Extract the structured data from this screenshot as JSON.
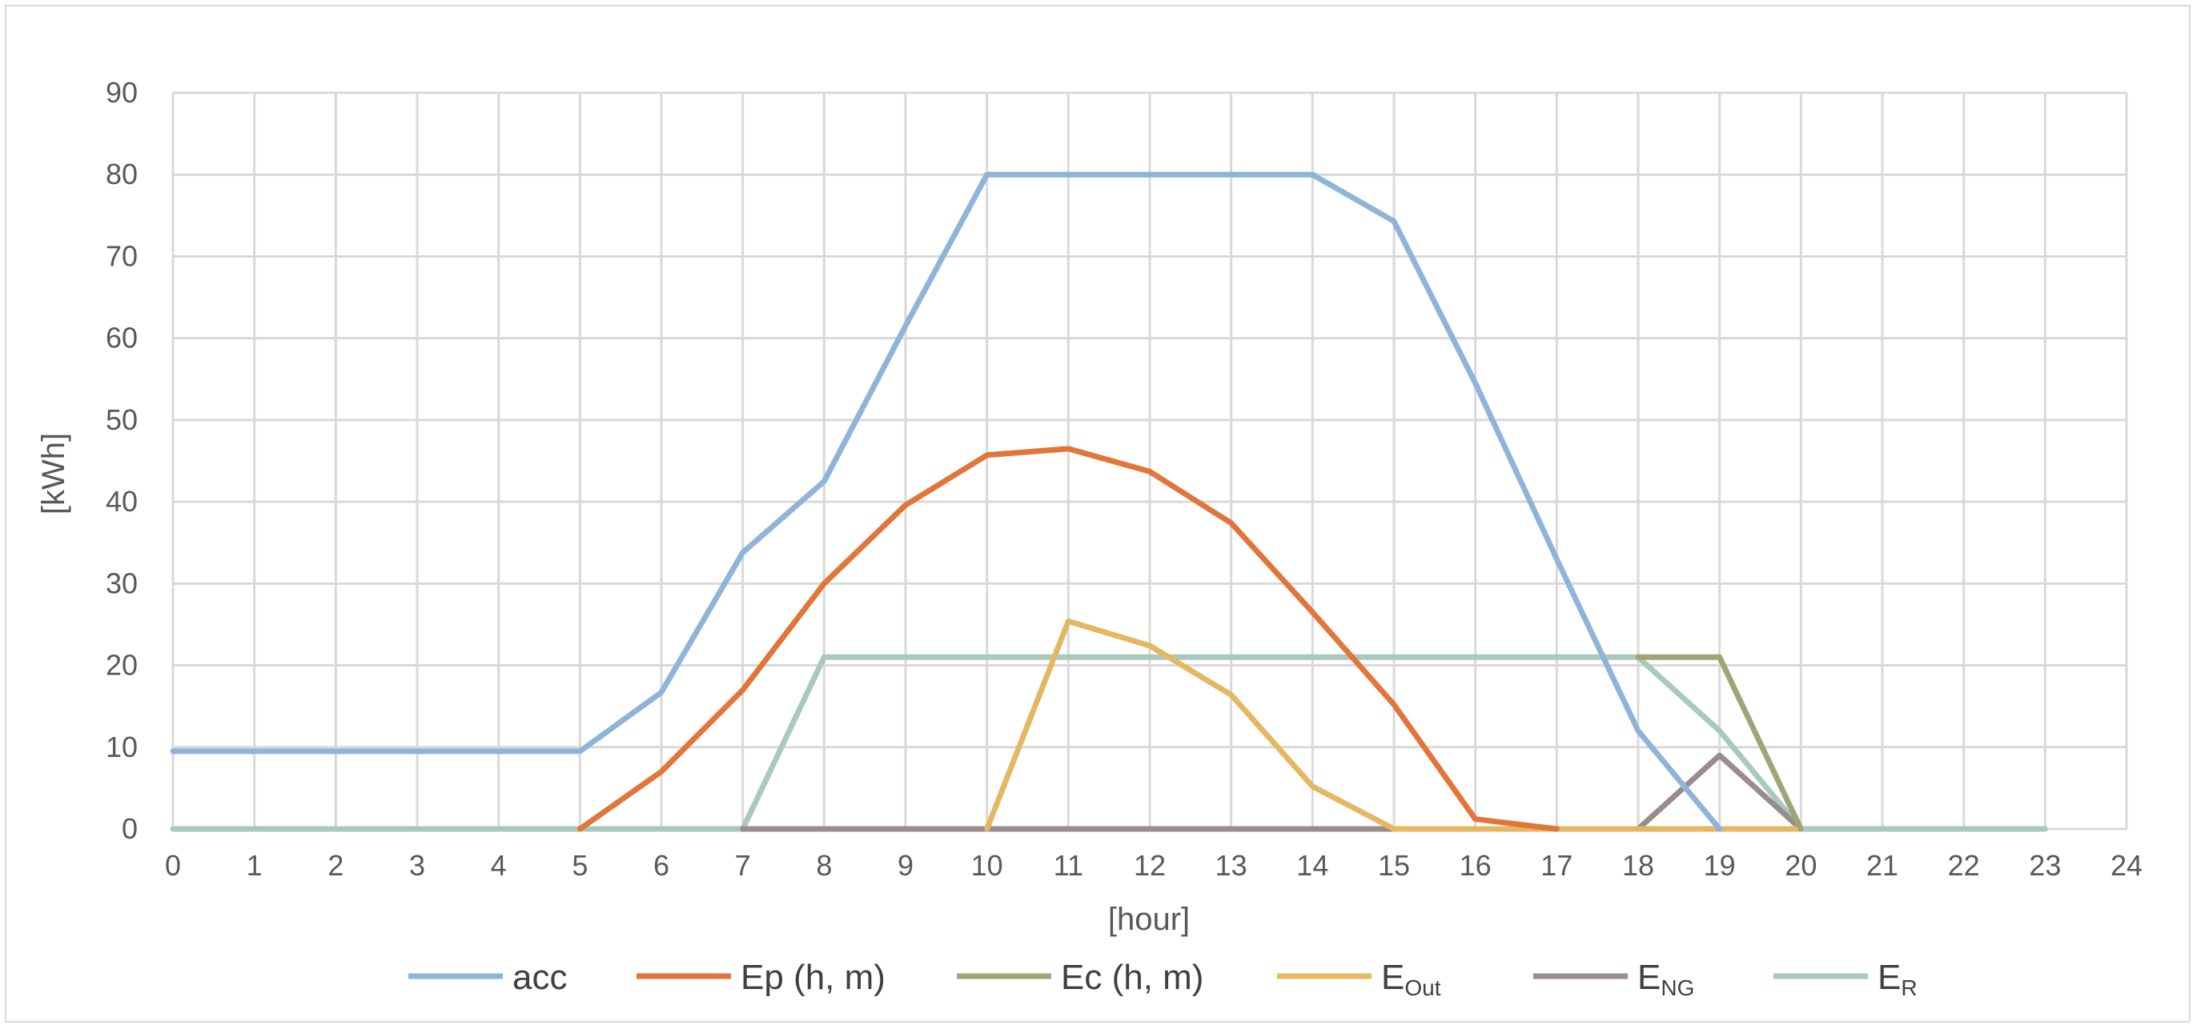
{
  "chart_data": {
    "type": "line",
    "title": "",
    "xlabel": "[hour]",
    "ylabel": "[kWh]",
    "xlim": [
      0,
      24
    ],
    "ylim": [
      0,
      90
    ],
    "x_ticks": [
      "0",
      "1",
      "2",
      "3",
      "4",
      "5",
      "6",
      "7",
      "8",
      "9",
      "10",
      "11",
      "12",
      "13",
      "14",
      "15",
      "16",
      "17",
      "18",
      "19",
      "20",
      "21",
      "22",
      "23",
      "24"
    ],
    "y_ticks": [
      "0",
      "10",
      "20",
      "30",
      "40",
      "50",
      "60",
      "70",
      "80",
      "90"
    ],
    "grid": true,
    "legend_position": "bottom",
    "series": [
      {
        "name": "acc",
        "color": "#8fb4d9",
        "points": [
          [
            0,
            9.5
          ],
          [
            1,
            9.5
          ],
          [
            2,
            9.5
          ],
          [
            3,
            9.5
          ],
          [
            4,
            9.5
          ],
          [
            5,
            9.5
          ],
          [
            6,
            16.7
          ],
          [
            7,
            33.8
          ],
          [
            8,
            42.5
          ],
          [
            9,
            61.5
          ],
          [
            10,
            80
          ],
          [
            11,
            80
          ],
          [
            12,
            80
          ],
          [
            13,
            80
          ],
          [
            14,
            80
          ],
          [
            15,
            74.3
          ],
          [
            16,
            54.5
          ],
          [
            17,
            33
          ],
          [
            18,
            12
          ],
          [
            19,
            0
          ]
        ]
      },
      {
        "name": "Ep (h, m)",
        "color": "#e2753a",
        "points": [
          [
            5,
            0
          ],
          [
            6,
            7
          ],
          [
            7,
            17
          ],
          [
            8,
            30
          ],
          [
            9,
            39.6
          ],
          [
            10,
            45.7
          ],
          [
            11,
            46.5
          ],
          [
            12,
            43.7
          ],
          [
            13,
            37.4
          ],
          [
            14,
            26.5
          ],
          [
            15,
            15.2
          ],
          [
            16,
            1.2
          ],
          [
            17,
            0
          ]
        ]
      },
      {
        "name": "Ec (h, m)",
        "color": "#a0a577",
        "points": [
          [
            18,
            21
          ],
          [
            19,
            21
          ],
          [
            20,
            0
          ]
        ]
      },
      {
        "name": "E",
        "name_sub": "Out",
        "color": "#e4b862",
        "points": [
          [
            10,
            0
          ],
          [
            11,
            25.4
          ],
          [
            12,
            22.4
          ],
          [
            13,
            16.4
          ],
          [
            14,
            5.2
          ],
          [
            15,
            0
          ],
          [
            18,
            0
          ],
          [
            19,
            0
          ],
          [
            20,
            0
          ]
        ]
      },
      {
        "name": "E",
        "name_sub": "NG",
        "color": "#9a8c8c",
        "points": [
          [
            7,
            0
          ],
          [
            8,
            0
          ],
          [
            9,
            0
          ],
          [
            10,
            0
          ],
          [
            11,
            0
          ],
          [
            12,
            0
          ],
          [
            13,
            0
          ],
          [
            14,
            0
          ],
          [
            15,
            0
          ],
          [
            16,
            0
          ],
          [
            17,
            0
          ],
          [
            18,
            0
          ],
          [
            19,
            9
          ],
          [
            20,
            0
          ]
        ]
      },
      {
        "name": "E",
        "name_sub": "R",
        "color": "#a9c9bd",
        "points": [
          [
            0,
            0
          ],
          [
            1,
            0
          ],
          [
            2,
            0
          ],
          [
            3,
            0
          ],
          [
            4,
            0
          ],
          [
            5,
            0
          ],
          [
            6,
            0
          ],
          [
            7,
            0
          ],
          [
            8,
            21
          ],
          [
            9,
            21
          ],
          [
            10,
            21
          ],
          [
            11,
            21
          ],
          [
            12,
            21
          ],
          [
            13,
            21
          ],
          [
            14,
            21
          ],
          [
            15,
            21
          ],
          [
            16,
            21
          ],
          [
            17,
            21
          ],
          [
            18,
            21
          ],
          [
            19,
            12
          ],
          [
            20,
            0
          ],
          [
            21,
            0
          ],
          [
            22,
            0
          ],
          [
            23,
            0
          ]
        ]
      }
    ]
  }
}
